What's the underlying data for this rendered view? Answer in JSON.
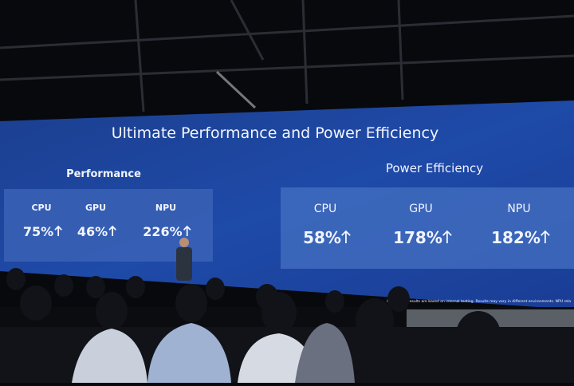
{
  "slide": {
    "title": "Ultimate Performance and Power Efficiency",
    "performance": {
      "heading": "Performance",
      "items": [
        {
          "label": "CPU",
          "value": "75%"
        },
        {
          "label": "GPU",
          "value": "46%"
        },
        {
          "label": "NPU",
          "value": "226%"
        }
      ]
    },
    "power_efficiency": {
      "heading": "Power Efficiency",
      "items": [
        {
          "label": "CPU",
          "value": "58%"
        },
        {
          "label": "GPU",
          "value": "178%"
        },
        {
          "label": "NPU",
          "value": "182%"
        }
      ]
    },
    "footnote": "benchmark results are based on internal testing. Results may vary in different environments. NPU rela"
  }
}
